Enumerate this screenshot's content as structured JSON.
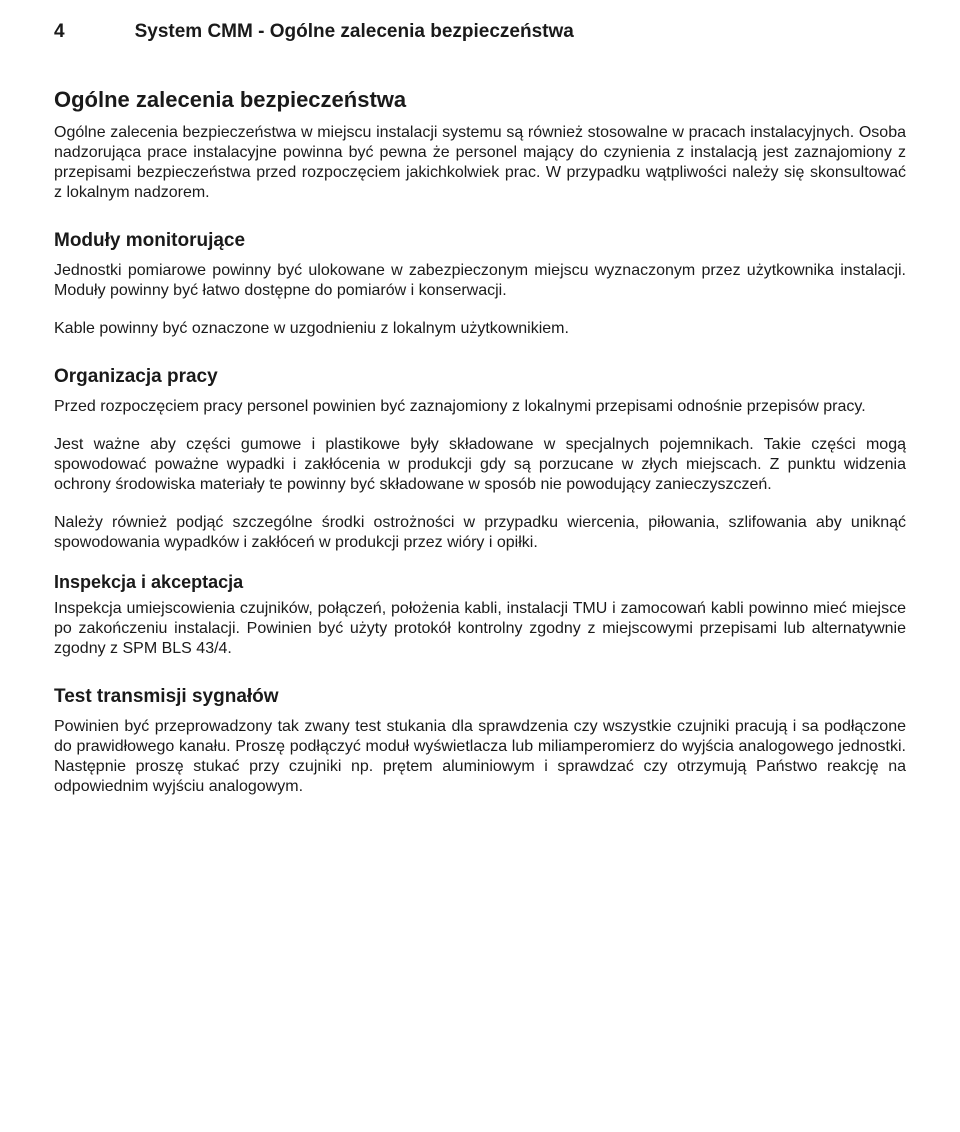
{
  "header": {
    "page_number": "4",
    "title": "System CMM - Ogólne zalecenia bezpieczeństwa"
  },
  "section_main": {
    "heading": "Ogólne zalecenia bezpieczeństwa",
    "para1": "Ogólne zalecenia bezpieczeństwa w miejscu instalacji systemu są również stosowalne w pracach instalacyjnych. Osoba nadzorująca prace instalacyjne powinna być pewna że personel mający do czynienia z instalacją jest zaznajomiony z przepisami bezpieczeństwa przed rozpoczęciem jakichkolwiek prac. W przypadku wątpliwości należy się skonsultować z lokalnym nadzorem."
  },
  "section_modules": {
    "heading": "Moduły monitorujące",
    "para1": "Jednostki pomiarowe powinny być ulokowane w zabezpieczonym miejscu wyznaczonym przez użytkownika instalacji. Moduły powinny być łatwo dostępne do pomiarów i konserwacji.",
    "para2": "Kable powinny być oznaczone w uzgodnieniu z lokalnym użytkownikiem."
  },
  "section_org": {
    "heading": "Organizacja pracy",
    "para1": "Przed rozpoczęciem pracy personel powinien być zaznajomiony z lokalnymi przepisami odnośnie przepisów pracy.",
    "para2": "Jest ważne aby części gumowe i plastikowe były składowane w specjalnych pojemnikach. Takie części mogą spowodować poważne wypadki i zakłócenia w produkcji gdy są porzucane w złych miejscach. Z punktu widzenia ochrony środowiska materiały te powinny być składowane w sposób nie powodujący zanieczyszczeń.",
    "para3": "Należy również podjąć szczególne środki ostrożności w przypadku wiercenia, piłowania, szlifowania aby uniknąć spowodowania wypadków i zakłóceń w produkcji przez wióry i opiłki."
  },
  "section_inspection": {
    "heading": "Inspekcja i akceptacja",
    "para1": "Inspekcja umiejscowienia czujników, połączeń, położenia kabli, instalacji TMU i zamocowań kabli powinno mieć miejsce po zakończeniu instalacji. Powinien być użyty protokół kontrolny zgodny z miejscowymi przepisami lub alternatywnie zgodny z SPM BLS 43/4."
  },
  "section_test": {
    "heading": "Test transmisji sygnałów",
    "para1": "Powinien być przeprowadzony tak zwany test stukania dla sprawdzenia czy wszystkie czujniki pracują i sa podłączone do prawidłowego kanału. Proszę podłączyć moduł wyświetlacza lub miliamperomierz do wyjścia analogowego jednostki. Następnie proszę stukać przy czujniki np. prętem aluminiowym i sprawdzać czy otrzymują Państwo reakcję na odpowiednim wyjściu analogowym."
  }
}
